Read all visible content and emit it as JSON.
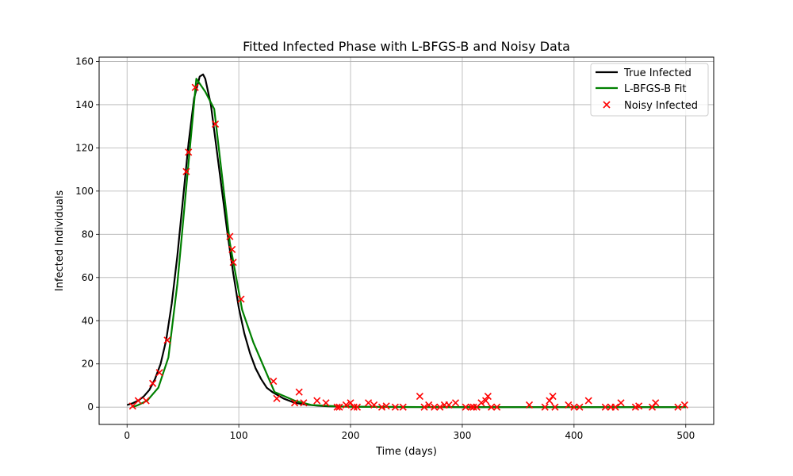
{
  "chart_data": {
    "type": "line",
    "title": "Fitted Infected Phase with L-BFGS-B and Noisy Data",
    "xlabel": "Time (days)",
    "ylabel": "Infected Individuals",
    "xlim": [
      -25,
      525
    ],
    "ylim": [
      -8,
      162
    ],
    "xticks": [
      0,
      100,
      200,
      300,
      400,
      500
    ],
    "yticks": [
      0,
      20,
      40,
      60,
      80,
      100,
      120,
      140,
      160
    ],
    "xtick_labels": [
      "0",
      "100",
      "200",
      "300",
      "400",
      "500"
    ],
    "ytick_labels": [
      "0",
      "20",
      "40",
      "60",
      "80",
      "100",
      "120",
      "140",
      "160"
    ],
    "grid": true,
    "legend_position": "top-right",
    "series": [
      {
        "name": "True Infected",
        "kind": "line",
        "color": "#000000",
        "x": [
          0,
          5,
          10,
          15,
          20,
          25,
          30,
          35,
          40,
          45,
          50,
          55,
          60,
          65,
          68,
          70,
          75,
          80,
          85,
          90,
          95,
          100,
          105,
          110,
          115,
          120,
          125,
          130,
          140,
          150,
          160,
          170,
          180,
          200,
          250,
          300,
          400,
          500
        ],
        "y": [
          1,
          1.8,
          3,
          5,
          8,
          13,
          20,
          31,
          48,
          70,
          96,
          122,
          143,
          153,
          154,
          152,
          140,
          120,
          100,
          80,
          62,
          46,
          34,
          25,
          18,
          13,
          9,
          7,
          4,
          2,
          1.2,
          0.7,
          0.4,
          0.2,
          0.05,
          0.02,
          0,
          0
        ]
      },
      {
        "name": "L-BFGS-B Fit",
        "kind": "line",
        "color": "#008000",
        "x": [
          5,
          10,
          18,
          28,
          37,
          45,
          55,
          62,
          70,
          78,
          92,
          103,
          113,
          132,
          150,
          165,
          190,
          220,
          260,
          300,
          400,
          500
        ],
        "y": [
          0,
          1,
          3,
          9,
          23,
          57,
          113,
          152,
          146,
          138,
          76,
          45,
          30,
          7,
          3,
          1,
          0.3,
          0.1,
          0.05,
          0,
          0,
          0
        ]
      },
      {
        "name": "Noisy Infected",
        "kind": "scatter",
        "marker": "x",
        "color": "#ff0000",
        "x": [
          5,
          10,
          17,
          23,
          29,
          36,
          53,
          55,
          61,
          79,
          92,
          94,
          95,
          102,
          131,
          134,
          150,
          154,
          158,
          170,
          178,
          188,
          190,
          196,
          200,
          203,
          206,
          216,
          221,
          228,
          232,
          240,
          247,
          262,
          266,
          270,
          275,
          280,
          284,
          288,
          294,
          303,
          308,
          310,
          313,
          317,
          321,
          323,
          326,
          331,
          360,
          374,
          378,
          381,
          383,
          395,
          400,
          405,
          413,
          428,
          433,
          437,
          442,
          455,
          458,
          470,
          473,
          493,
          499
        ],
        "y": [
          0.5,
          3,
          3,
          11,
          16,
          31,
          109,
          118,
          148,
          131,
          79,
          73,
          67,
          50,
          12,
          4,
          2,
          7,
          2,
          3,
          2,
          0,
          0,
          1,
          2,
          0,
          0,
          2,
          1,
          0,
          0.5,
          0,
          0,
          5,
          0,
          1,
          0,
          0,
          1,
          1,
          2,
          0,
          0,
          0,
          0,
          2,
          3,
          5,
          0,
          0,
          1,
          0,
          3,
          5,
          0,
          1,
          0,
          0,
          3,
          0,
          0,
          0,
          2,
          0,
          0.5,
          0,
          2,
          0,
          1
        ]
      }
    ]
  }
}
